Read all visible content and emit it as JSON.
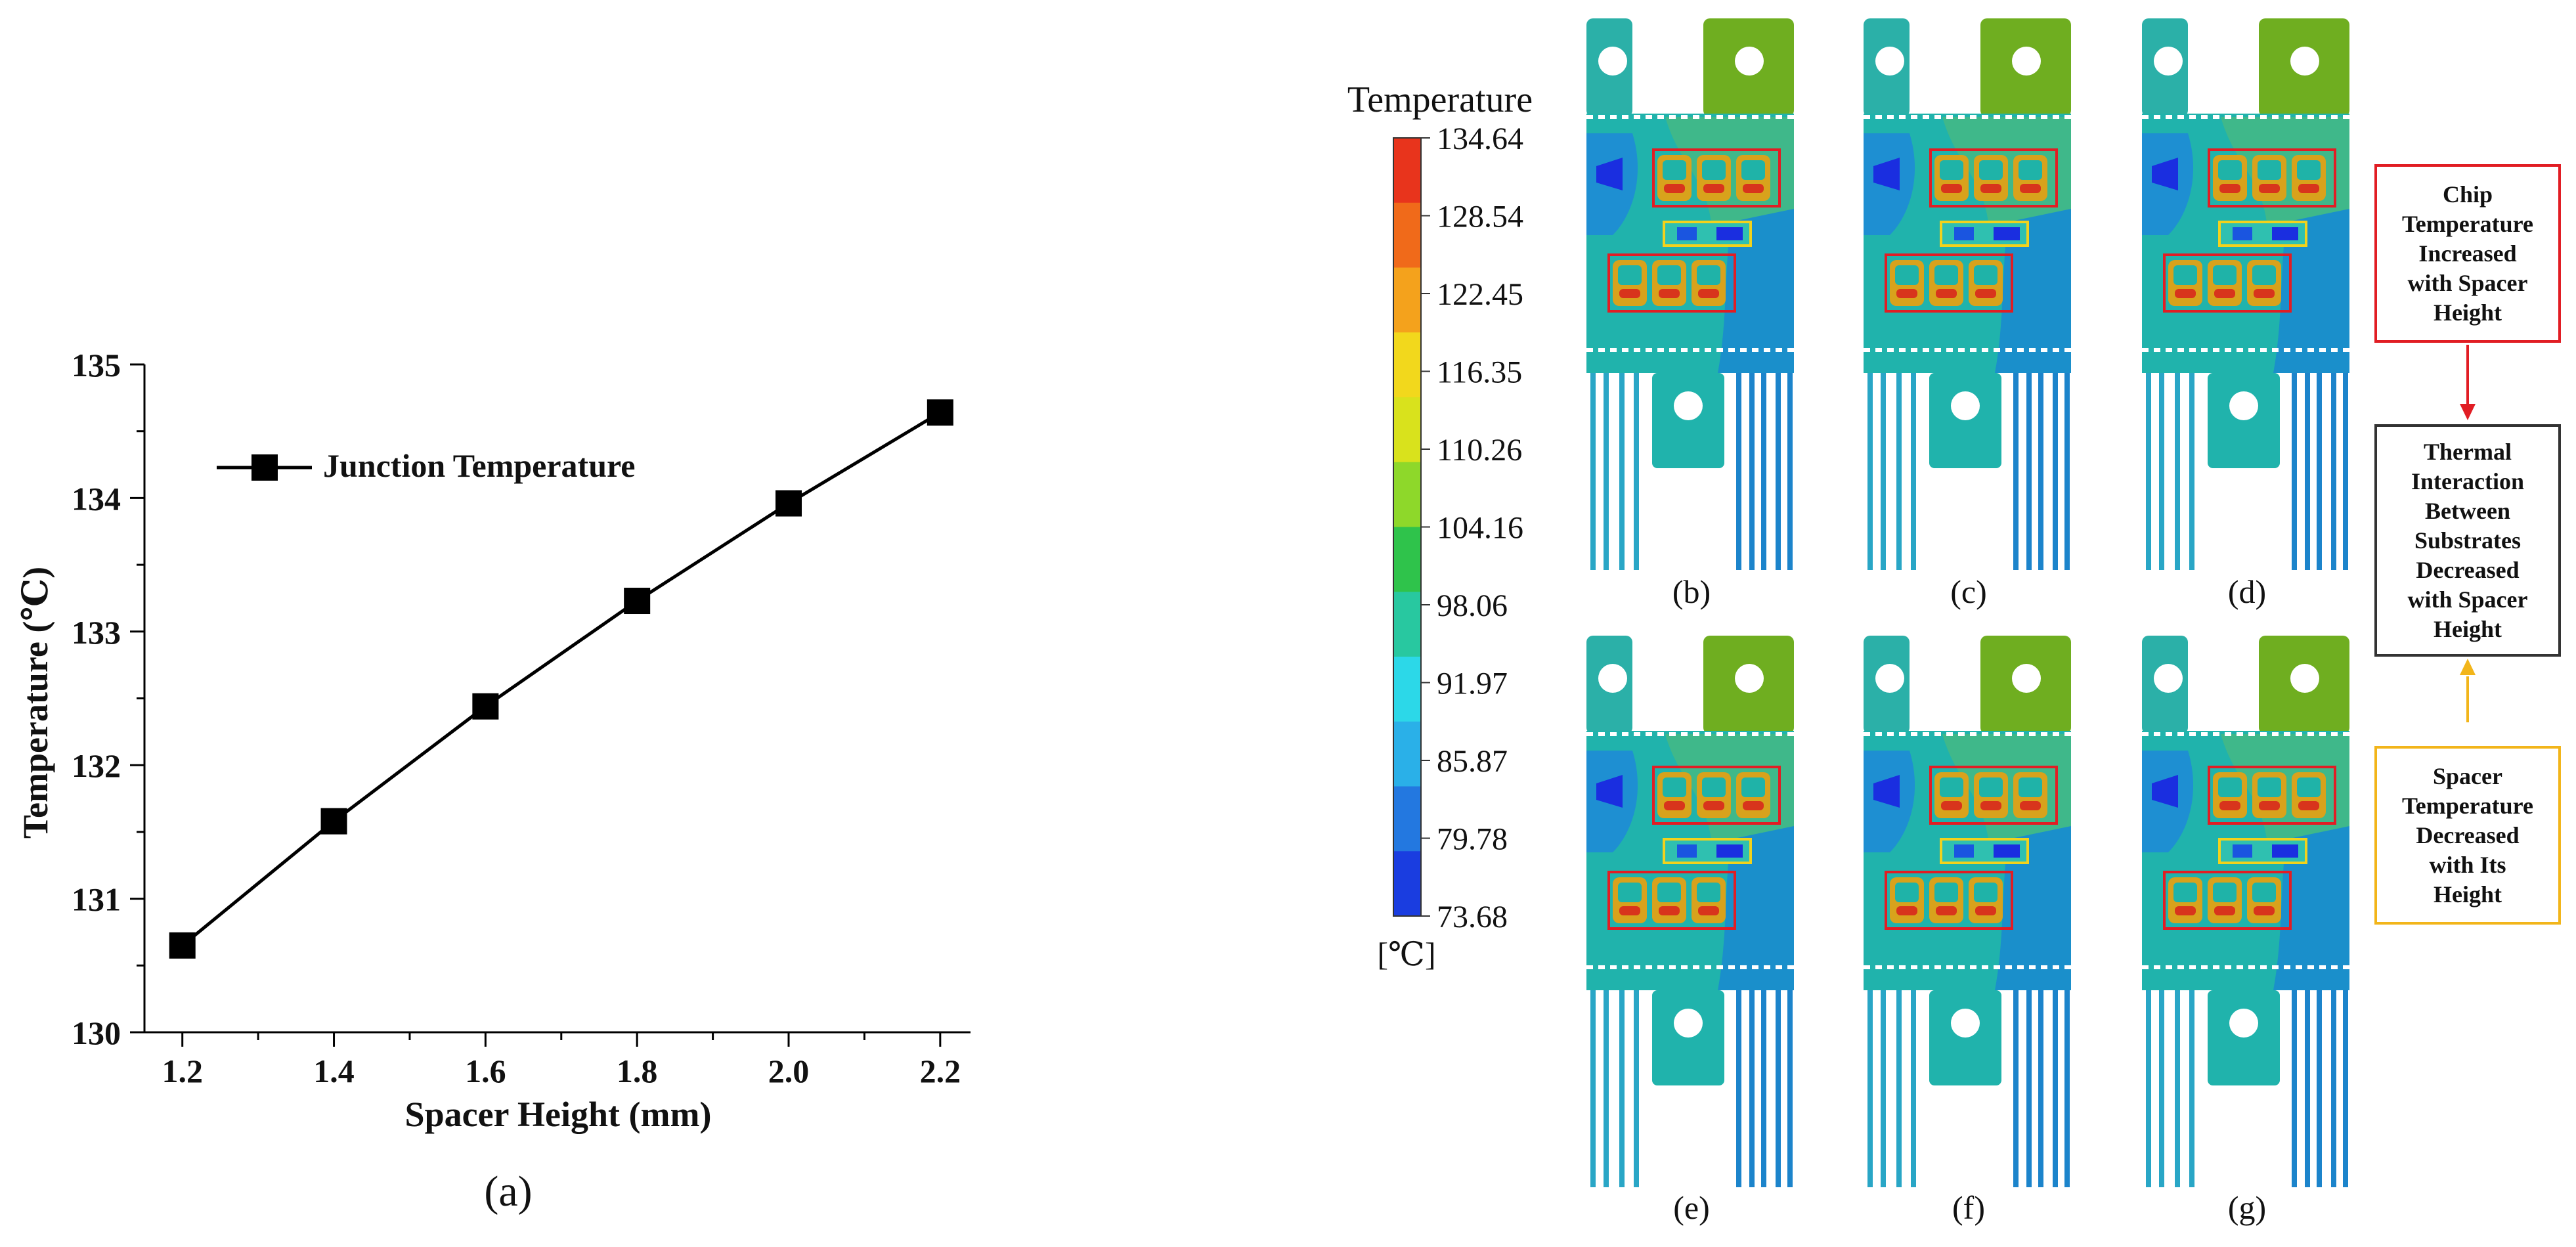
{
  "chart_data": [
    {
      "panel": "(a)",
      "type": "line",
      "title": "",
      "xlabel": "Spacer Height (mm)",
      "ylabel": "Temperature (℃)",
      "x": [
        1.2,
        1.4,
        1.6,
        1.8,
        2.0,
        2.2
      ],
      "x_tick_labels": [
        "1.2",
        "1.4",
        "1.6",
        "1.8",
        "2.0",
        "2.2"
      ],
      "y_ticks": [
        130,
        131,
        132,
        133,
        134,
        135
      ],
      "xlim": [
        1.15,
        2.24
      ],
      "ylim": [
        130,
        135
      ],
      "legend_position": "top-left",
      "grid": false,
      "series": [
        {
          "name": "Junction Temperature",
          "values": [
            130.65,
            131.58,
            132.44,
            133.23,
            133.96,
            134.64
          ],
          "color": "#000000",
          "marker": "square"
        }
      ]
    },
    {
      "type": "heatmap",
      "title": "Temperature",
      "unit_label": "[℃]",
      "colorbar_ticks": [
        "134.64",
        "128.54",
        "122.45",
        "116.35",
        "110.26",
        "104.16",
        "98.06",
        "91.97",
        "85.87",
        "79.78",
        "73.68"
      ],
      "colorbar_colors": [
        "#e8341c",
        "#f06a1a",
        "#f4a21c",
        "#f2d81c",
        "#d9e21c",
        "#8ed82a",
        "#2fc34b",
        "#28c8a0",
        "#2cd8e8",
        "#2ab0e8",
        "#2378e0",
        "#1a3de0"
      ],
      "range": [
        73.68,
        134.64
      ],
      "panels": [
        "(b)",
        "(c)",
        "(d)",
        "(e)",
        "(f)",
        "(g)"
      ]
    }
  ],
  "annotations": {
    "chip_box": {
      "text": "Chip\nTemperature\nIncreased\nwith Spacer\nHeight",
      "color": "#e11d24"
    },
    "thermal_box": {
      "text": "Thermal\nInteraction\nBetween\nSubstrates\nDecreased\nwith Spacer\nHeight",
      "color": "#333333"
    },
    "spacer_box": {
      "text": "Spacer\nTemperature\nDecreased\nwith Its\nHeight",
      "color": "#f2b51a"
    }
  }
}
